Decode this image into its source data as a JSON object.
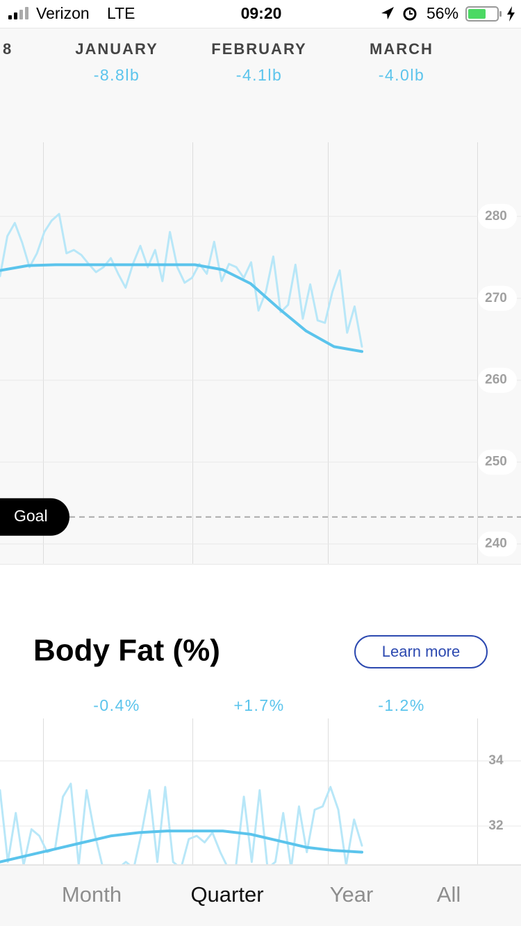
{
  "status_bar": {
    "carrier": "Verizon",
    "network": "LTE",
    "time": "09:20",
    "battery": "56%"
  },
  "weight_chart": {
    "type": "line",
    "months": [
      "8",
      "JANUARY",
      "FEBRUARY",
      "MARCH"
    ],
    "changes": [
      null,
      "-8.8lb",
      "-4.1lb",
      "-4.0lb"
    ],
    "ylim": [
      237.6,
      289.05
    ],
    "yticks": [
      240,
      250,
      260,
      270,
      280
    ],
    "grid": true,
    "goal": {
      "label": "Goal",
      "value": 243.3
    },
    "series": [
      {
        "color": "#b8e7f8",
        "width": 3,
        "values": [
          272.7,
          277.6,
          279.2,
          276.8,
          273.8,
          275.5,
          278.1,
          279.5,
          280.3,
          275.5,
          275.9,
          275.3,
          274.2,
          273.2,
          273.8,
          274.9,
          273.0,
          271.3,
          274.2,
          276.4,
          273.8,
          275.9,
          272.1,
          278.1,
          273.8,
          271.9,
          272.5,
          274.2,
          273.0,
          276.9,
          272.1,
          274.2,
          273.8,
          272.5,
          274.4,
          268.5,
          270.8,
          275.1,
          268.3,
          269.2,
          274.1,
          267.5,
          271.7,
          267.3,
          267.0,
          270.8,
          273.4,
          265.8,
          269.0,
          264.1
        ]
      },
      {
        "color": "#5bc4ec",
        "width": 4,
        "values": [
          273.4,
          274.0,
          274.1,
          274.1,
          274.1,
          274.1,
          274.1,
          274.1,
          273.5,
          271.8,
          268.8,
          266.0,
          264.1,
          263.5
        ]
      }
    ]
  },
  "body_fat_chart": {
    "type": "line",
    "title": "Body Fat (%)",
    "button": "Learn more",
    "changes": [
      null,
      "-0.4%",
      "+1.7%",
      "-1.2%"
    ],
    "ylim": [
      30.83,
      35.3
    ],
    "yticks": [
      32,
      34
    ],
    "grid": true,
    "series": [
      {
        "color": "#b8e7f8",
        "width": 3,
        "values": [
          33.1,
          30.9,
          32.4,
          30.8,
          31.9,
          31.7,
          31.2,
          31.3,
          32.9,
          33.3,
          30.8,
          33.1,
          31.8,
          30.8,
          30.8,
          30.7,
          30.9,
          30.7,
          31.8,
          33.1,
          30.9,
          33.2,
          30.9,
          30.7,
          31.6,
          31.7,
          31.5,
          31.8,
          31.2,
          30.7,
          30.8,
          32.9,
          30.9,
          33.1,
          30.7,
          30.9,
          32.4,
          30.7,
          32.6,
          31.2,
          32.5,
          32.6,
          33.2,
          32.5,
          30.8,
          32.2,
          31.4
        ]
      },
      {
        "color": "#5bc4ec",
        "width": 4,
        "values": [
          30.9,
          31.1,
          31.3,
          31.5,
          31.7,
          31.8,
          31.85,
          31.85,
          31.85,
          31.75,
          31.55,
          31.35,
          31.25,
          31.2
        ]
      }
    ]
  },
  "tabs": {
    "items": [
      "Month",
      "Quarter",
      "Year",
      "All"
    ],
    "selected": "Quarter"
  }
}
